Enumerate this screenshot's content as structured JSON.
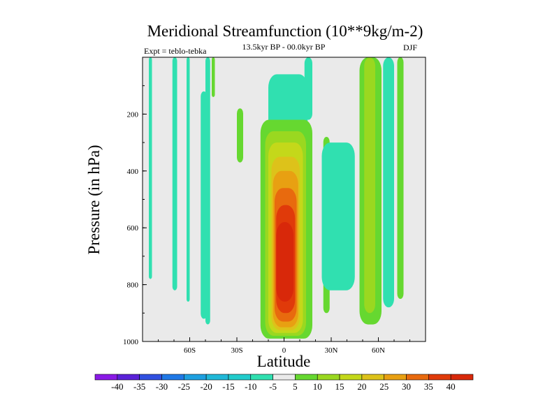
{
  "chart_data": {
    "type": "heatmap",
    "title": "Meridional Streamfunction (10**9kg/m-2)",
    "subtitle": "13.5kyr BP - 00.0kyr BP",
    "left_annotation": "Expt = teblo-tebka",
    "right_annotation": "DJF",
    "xlabel": "Latitude",
    "ylabel": "Pressure (in hPa)",
    "xlim": [
      -90,
      90
    ],
    "ylim": [
      1000,
      0
    ],
    "x_ticks": [
      {
        "value": -60,
        "label": "60S"
      },
      {
        "value": -30,
        "label": "30S"
      },
      {
        "value": 0,
        "label": "0"
      },
      {
        "value": 30,
        "label": "30N"
      },
      {
        "value": 60,
        "label": "60N"
      }
    ],
    "y_ticks": [
      {
        "value": 200,
        "label": "200"
      },
      {
        "value": 400,
        "label": "400"
      },
      {
        "value": 600,
        "label": "600"
      },
      {
        "value": 800,
        "label": "800"
      },
      {
        "value": 1000,
        "label": "1000"
      }
    ],
    "colorbar": {
      "labels": [
        "-40",
        "-35",
        "-30",
        "-25",
        "-20",
        "-15",
        "-10",
        "-5",
        "5",
        "10",
        "15",
        "20",
        "25",
        "30",
        "35",
        "40"
      ],
      "colors": [
        "#8a1ae6",
        "#5a22d8",
        "#3050e0",
        "#1f78e6",
        "#1ea0e0",
        "#20b8d8",
        "#22cccc",
        "#30e0b0",
        "#eaeaea",
        "#66d830",
        "#9ad820",
        "#c4d81a",
        "#ddc21a",
        "#e8a012",
        "#e86a0e",
        "#e03a0a",
        "#d8280a"
      ]
    },
    "background_color": "#eaeaea",
    "regions": [
      {
        "level": -5,
        "lat": [
          -86,
          -84
        ],
        "p": [
          0,
          780
        ]
      },
      {
        "level": -5,
        "lat": [
          -71,
          -68
        ],
        "p": [
          0,
          820
        ]
      },
      {
        "level": -5,
        "lat": [
          -62,
          -60
        ],
        "p": [
          0,
          860
        ]
      },
      {
        "level": -5,
        "lat": [
          -53,
          -49
        ],
        "p": [
          120,
          920
        ]
      },
      {
        "level": -5,
        "lat": [
          -50,
          -47
        ],
        "p": [
          0,
          940
        ]
      },
      {
        "level": 5,
        "lat": [
          -46,
          -44
        ],
        "p": [
          0,
          140
        ]
      },
      {
        "level": 5,
        "lat": [
          -30,
          -26
        ],
        "p": [
          180,
          370
        ]
      },
      {
        "level": -5,
        "lat": [
          -10,
          15
        ],
        "p": [
          60,
          310
        ]
      },
      {
        "level": -10,
        "lat": [
          -6,
          12
        ],
        "p": [
          120,
          250
        ]
      },
      {
        "level": -5,
        "lat": [
          13,
          18
        ],
        "p": [
          0,
          220
        ]
      },
      {
        "level": 5,
        "lat": [
          -15,
          18
        ],
        "p": [
          220,
          990
        ]
      },
      {
        "level": 10,
        "lat": [
          -12,
          14
        ],
        "p": [
          260,
          980
        ]
      },
      {
        "level": 15,
        "lat": [
          -10,
          12
        ],
        "p": [
          300,
          970
        ]
      },
      {
        "level": 20,
        "lat": [
          -8,
          10
        ],
        "p": [
          350,
          960
        ]
      },
      {
        "level": 25,
        "lat": [
          -7,
          9
        ],
        "p": [
          400,
          950
        ]
      },
      {
        "level": 30,
        "lat": [
          -6,
          8
        ],
        "p": [
          460,
          930
        ]
      },
      {
        "level": 35,
        "lat": [
          -5,
          7
        ],
        "p": [
          520,
          900
        ]
      },
      {
        "level": 40,
        "lat": [
          -5,
          6
        ],
        "p": [
          580,
          860
        ]
      },
      {
        "level": 5,
        "lat": [
          25,
          29
        ],
        "p": [
          280,
          900
        ]
      },
      {
        "level": -5,
        "lat": [
          24,
          45
        ],
        "p": [
          300,
          820
        ]
      },
      {
        "level": 5,
        "lat": [
          48,
          62
        ],
        "p": [
          0,
          940
        ]
      },
      {
        "level": 10,
        "lat": [
          51,
          58
        ],
        "p": [
          0,
          900
        ]
      },
      {
        "level": -5,
        "lat": [
          63,
          70
        ],
        "p": [
          0,
          880
        ]
      },
      {
        "level": 5,
        "lat": [
          72,
          76
        ],
        "p": [
          0,
          850
        ]
      }
    ]
  }
}
